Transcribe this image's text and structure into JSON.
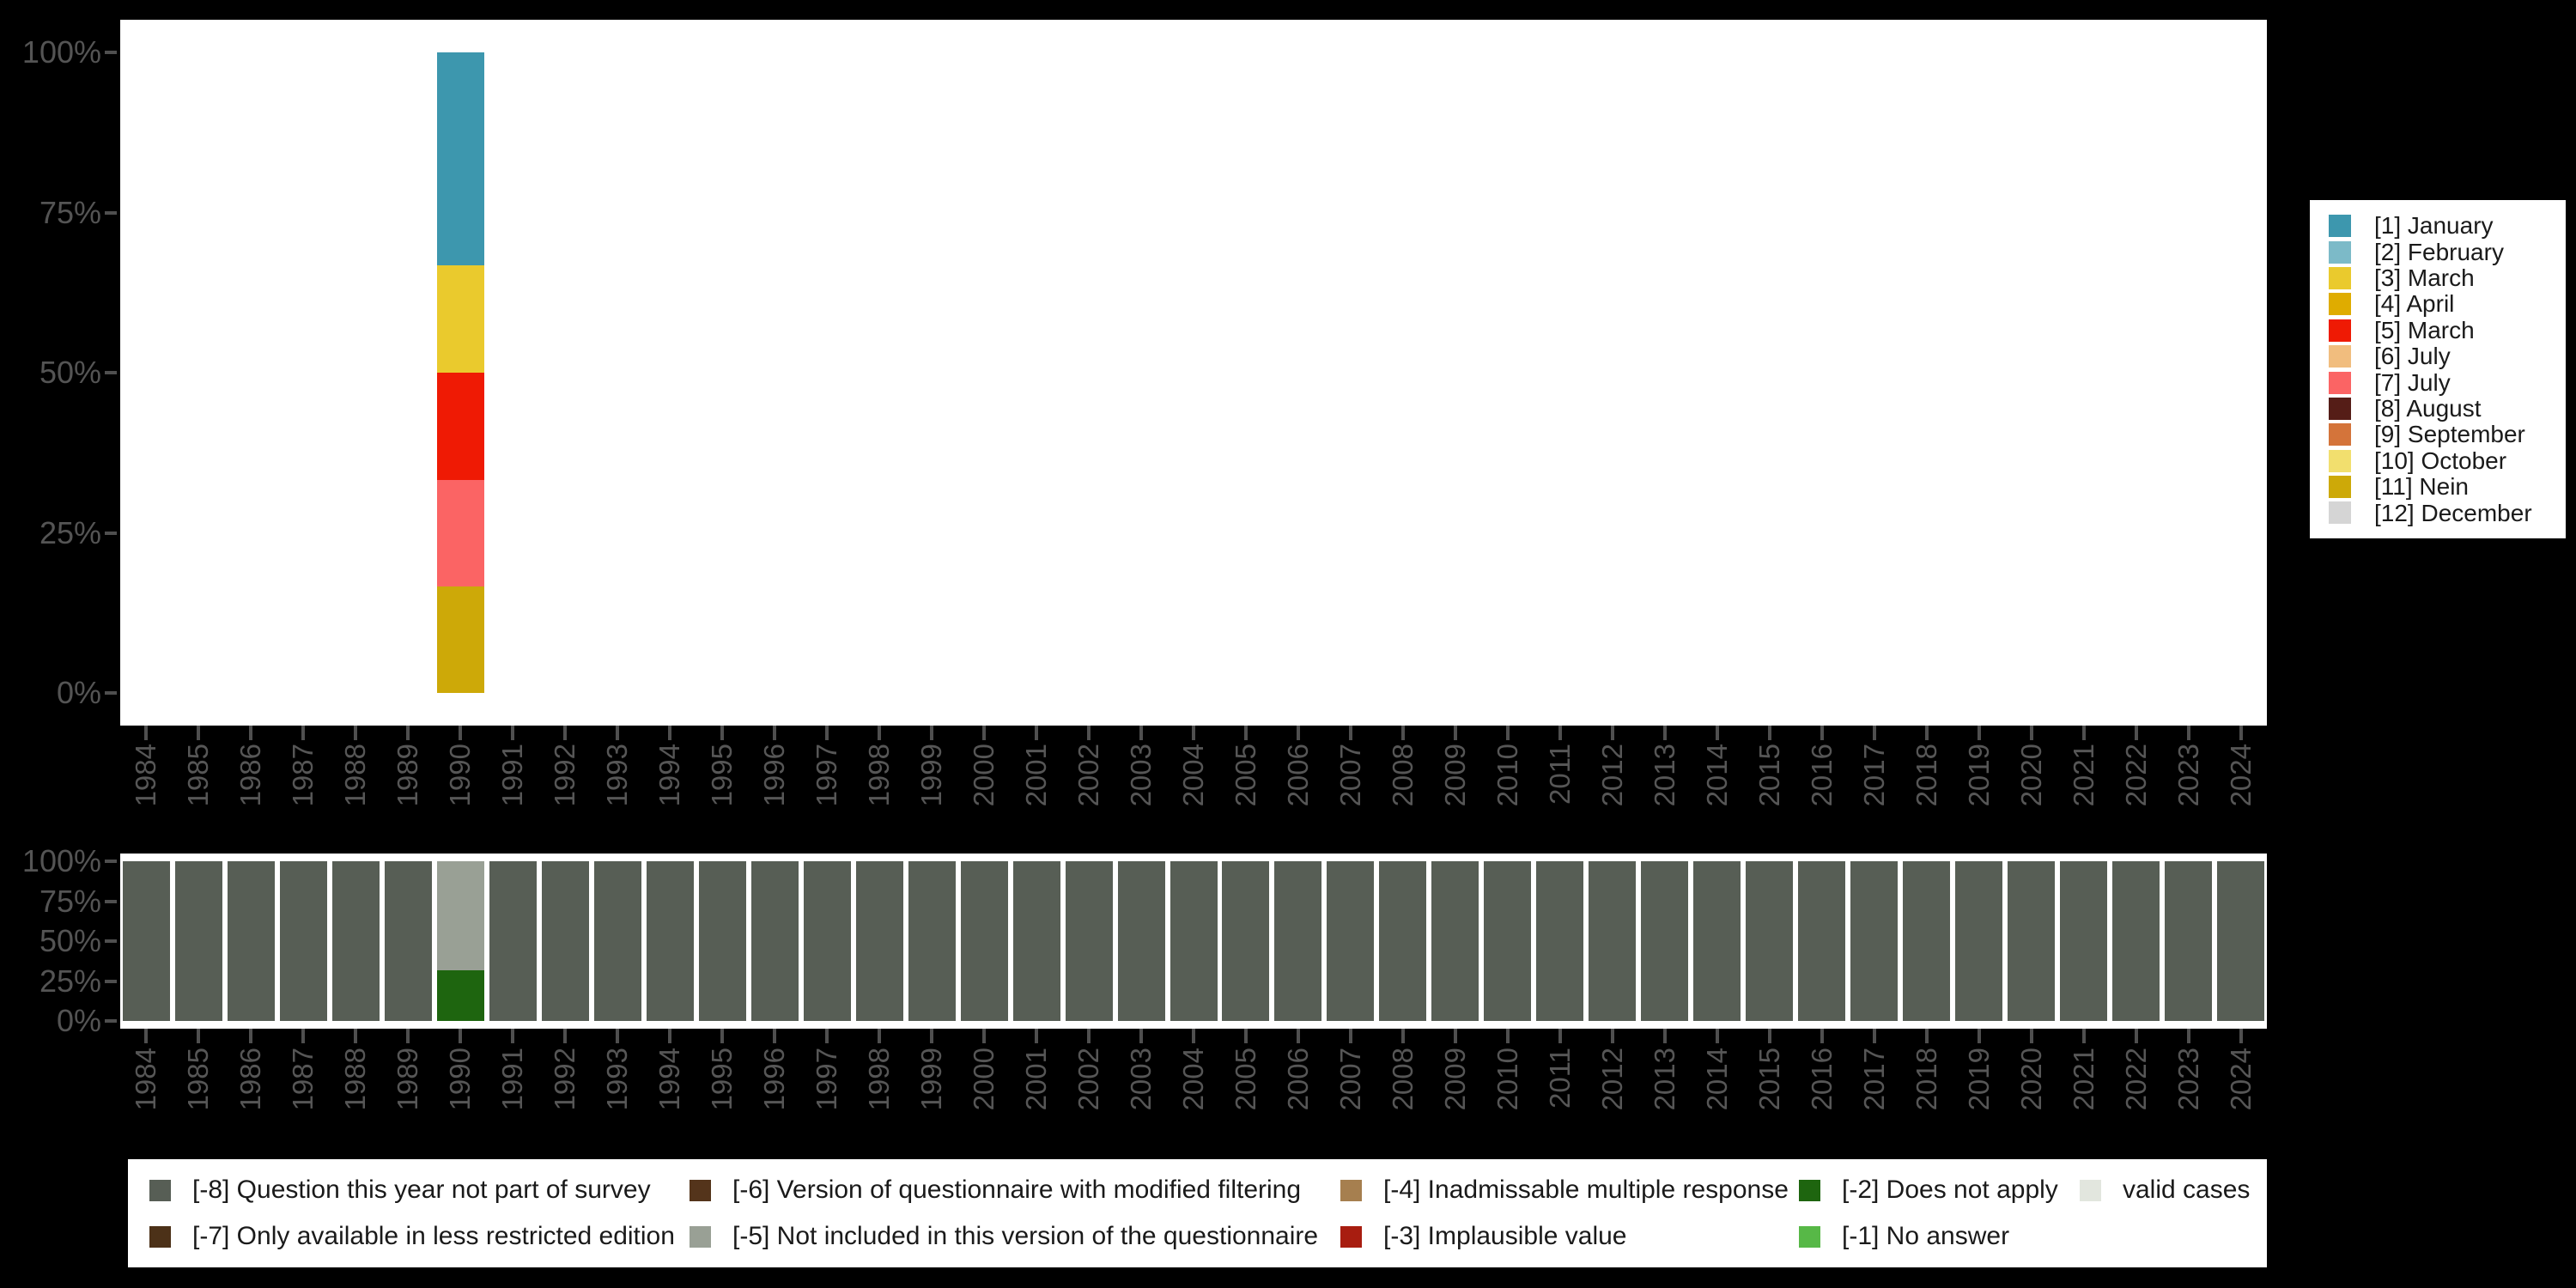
{
  "canvas": {
    "background": "#000000",
    "panel_background": "#ffffff"
  },
  "axes": {
    "text_color": "#545454",
    "tick_color": "#4f4f4f",
    "y_tick_labels": [
      "100%",
      "75%",
      "50%",
      "25%",
      "0%"
    ],
    "y_tick_values": [
      100,
      75,
      50,
      25,
      0
    ]
  },
  "years": [
    "1984",
    "1985",
    "1986",
    "1987",
    "1988",
    "1989",
    "1990",
    "1991",
    "1992",
    "1993",
    "1994",
    "1995",
    "1996",
    "1997",
    "1998",
    "1999",
    "2000",
    "2001",
    "2002",
    "2003",
    "2004",
    "2005",
    "2006",
    "2007",
    "2008",
    "2009",
    "2010",
    "2011",
    "2012",
    "2013",
    "2014",
    "2015",
    "2016",
    "2017",
    "2018",
    "2019",
    "2020",
    "2021",
    "2022",
    "2023",
    "2024"
  ],
  "month_legend": {
    "position": "right",
    "items": [
      {
        "label": "[1] January",
        "color": "#3D97AE"
      },
      {
        "label": "[2] February",
        "color": "#7CBAC8"
      },
      {
        "label": "[3] March",
        "color": "#EACA2D"
      },
      {
        "label": "[4] April",
        "color": "#DFAC00"
      },
      {
        "label": "[5] March",
        "color": "#EF1A04"
      },
      {
        "label": "[6] July",
        "color": "#F1BD7E"
      },
      {
        "label": "[7] July",
        "color": "#FB6464"
      },
      {
        "label": "[8] August",
        "color": "#551D17"
      },
      {
        "label": "[9] September",
        "color": "#D4743A"
      },
      {
        "label": "[10] October",
        "color": "#F2DF6E"
      },
      {
        "label": "[11] Nein",
        "color": "#CDA908"
      },
      {
        "label": "[12] December",
        "color": "#D5D5D5"
      }
    ]
  },
  "missing_legend": {
    "position": "bottom",
    "items": [
      {
        "label": "[-8] Question this year not part of survey",
        "color": "#575E55"
      },
      {
        "label": "[-7] Only available in less restricted edition",
        "color": "#4C3118"
      },
      {
        "label": "[-6] Version of questionnaire with modified filtering",
        "color": "#54341B"
      },
      {
        "label": "[-5] Not included in this version of the questionnaire",
        "color": "#99A095"
      },
      {
        "label": "[-4] Inadmissable multiple response",
        "color": "#A67F4F"
      },
      {
        "label": "[-3] Implausible value",
        "color": "#A81D10"
      },
      {
        "label": "[-2] Does not apply",
        "color": "#1E650F"
      },
      {
        "label": "[-1] No answer",
        "color": "#57B847"
      },
      {
        "label": "valid cases",
        "color": "#E2E6DE"
      }
    ]
  },
  "chart_data": [
    {
      "name": "interview-month-by-year",
      "type": "bar",
      "stacked": true,
      "unit": "percent",
      "categories_ref": "years",
      "ylim": [
        0,
        100
      ],
      "yticks": [
        "0%",
        "25%",
        "50%",
        "75%",
        "100%"
      ],
      "grid": false,
      "legend_position": "right",
      "default_segments": [],
      "bars": {
        "1990": [
          {
            "label": "[1] January",
            "value": 33.3
          },
          {
            "label": "[3] March",
            "value": 16.7
          },
          {
            "label": "[5] March",
            "value": 16.7
          },
          {
            "label": "[7] July",
            "value": 16.7
          },
          {
            "label": "[11] Nein",
            "value": 16.6
          }
        ]
      }
    },
    {
      "name": "missing-values-by-year",
      "type": "bar",
      "stacked": true,
      "unit": "percent",
      "categories_ref": "years",
      "ylim": [
        0,
        100
      ],
      "yticks": [
        "0%",
        "25%",
        "50%",
        "75%",
        "100%"
      ],
      "grid": false,
      "legend_position": "bottom",
      "default_segments": [
        {
          "label": "[-8] Question this year not part of survey",
          "value": 100
        }
      ],
      "bars": {
        "1990": [
          {
            "label": "[-5] Not included in this version of the questionnaire",
            "value": 68.3
          },
          {
            "label": "[-2] Does not apply",
            "value": 31.7
          }
        ]
      }
    }
  ]
}
